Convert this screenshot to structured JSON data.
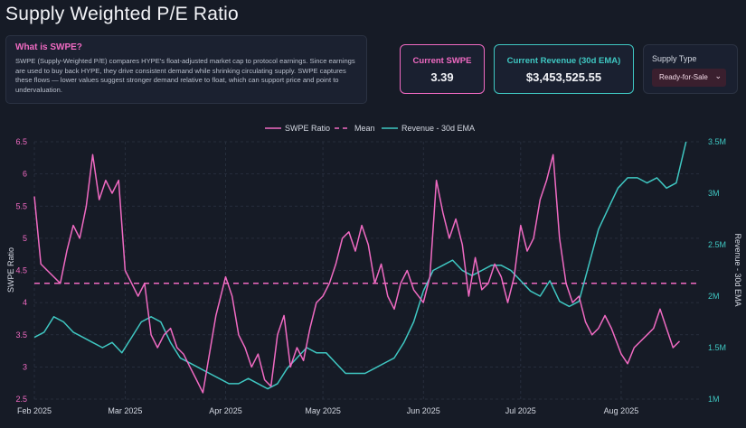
{
  "page": {
    "title": "Supply Weighted P/E Ratio"
  },
  "info": {
    "heading": "What is SWPE?",
    "body": "SWPE (Supply-Weighted P/E) compares HYPE's float-adjusted market cap to protocol earnings. Since earnings are used to buy back HYPE, they drive consistent demand while shrinking circulating supply. SWPE captures these flows — lower values suggest stronger demand relative to float, which can support price and point to undervaluation."
  },
  "cards": {
    "swpe_label": "Current SWPE",
    "swpe_value": "3.39",
    "revenue_label": "Current Revenue (30d EMA)",
    "revenue_value": "$3,453,525.55"
  },
  "supply": {
    "label": "Supply Type",
    "selected": "Ready-for-Sale"
  },
  "colors": {
    "swpe": "#f06ac2",
    "revenue": "#3fc7c2",
    "mean": "#f06ac2",
    "grid": "#2c3343"
  },
  "icons": {
    "select": "chevron-down-icon"
  },
  "chart_data": {
    "type": "line",
    "title": "",
    "xlabel": "",
    "ylabel": "SWPE Ratio",
    "y2label": "Revenue - 30d EMA",
    "ylim": [
      2.5,
      6.5
    ],
    "y2lim": [
      1000000,
      3500000
    ],
    "xlim": [
      "2025-02-01",
      "2025-08-25"
    ],
    "yticks": [
      "2.5",
      "3",
      "3.5",
      "4",
      "4.5",
      "5",
      "5.5",
      "6",
      "6.5"
    ],
    "y2ticks": [
      "1M",
      "1.5M",
      "2M",
      "2.5M",
      "3M",
      "3.5M"
    ],
    "xticks": [
      {
        "date": "2025-02-01",
        "label": "Feb 2025"
      },
      {
        "date": "2025-03-01",
        "label": "Mar 2025"
      },
      {
        "date": "2025-04-01",
        "label": "Apr 2025"
      },
      {
        "date": "2025-05-01",
        "label": "May 2025"
      },
      {
        "date": "2025-06-01",
        "label": "Jun 2025"
      },
      {
        "date": "2025-07-01",
        "label": "Jul 2025"
      },
      {
        "date": "2025-08-01",
        "label": "Aug 2025"
      }
    ],
    "grid": true,
    "legend_position": "top-center",
    "legend": [
      "SWPE Ratio",
      "Mean",
      "Revenue - 30d EMA"
    ],
    "mean": 4.3,
    "series": [
      {
        "name": "SWPE Ratio",
        "axis": "left",
        "x": [
          "2025-02-01",
          "2025-02-03",
          "2025-02-05",
          "2025-02-07",
          "2025-02-09",
          "2025-02-11",
          "2025-02-13",
          "2025-02-15",
          "2025-02-17",
          "2025-02-19",
          "2025-02-21",
          "2025-02-23",
          "2025-02-25",
          "2025-02-27",
          "2025-03-01",
          "2025-03-03",
          "2025-03-05",
          "2025-03-07",
          "2025-03-09",
          "2025-03-11",
          "2025-03-13",
          "2025-03-15",
          "2025-03-17",
          "2025-03-19",
          "2025-03-21",
          "2025-03-23",
          "2025-03-25",
          "2025-03-27",
          "2025-03-29",
          "2025-04-01",
          "2025-04-03",
          "2025-04-05",
          "2025-04-07",
          "2025-04-09",
          "2025-04-11",
          "2025-04-13",
          "2025-04-15",
          "2025-04-17",
          "2025-04-19",
          "2025-04-21",
          "2025-04-23",
          "2025-04-25",
          "2025-04-27",
          "2025-04-29",
          "2025-05-01",
          "2025-05-03",
          "2025-05-05",
          "2025-05-07",
          "2025-05-09",
          "2025-05-11",
          "2025-05-13",
          "2025-05-15",
          "2025-05-17",
          "2025-05-19",
          "2025-05-21",
          "2025-05-23",
          "2025-05-25",
          "2025-05-27",
          "2025-05-29",
          "2025-06-01",
          "2025-06-03",
          "2025-06-05",
          "2025-06-07",
          "2025-06-09",
          "2025-06-11",
          "2025-06-13",
          "2025-06-15",
          "2025-06-17",
          "2025-06-19",
          "2025-06-21",
          "2025-06-23",
          "2025-06-25",
          "2025-06-27",
          "2025-06-29",
          "2025-07-01",
          "2025-07-03",
          "2025-07-05",
          "2025-07-07",
          "2025-07-09",
          "2025-07-11",
          "2025-07-13",
          "2025-07-15",
          "2025-07-17",
          "2025-07-19",
          "2025-07-21",
          "2025-07-23",
          "2025-07-25",
          "2025-07-27",
          "2025-07-29",
          "2025-08-01",
          "2025-08-03",
          "2025-08-05",
          "2025-08-07",
          "2025-08-09",
          "2025-08-11",
          "2025-08-13",
          "2025-08-15",
          "2025-08-17",
          "2025-08-19"
        ],
        "values": [
          5.65,
          4.6,
          4.5,
          4.4,
          4.3,
          4.8,
          5.2,
          5.0,
          5.5,
          6.3,
          5.6,
          5.9,
          5.7,
          5.9,
          4.5,
          4.3,
          4.1,
          4.3,
          3.5,
          3.3,
          3.5,
          3.6,
          3.3,
          3.2,
          3.0,
          2.8,
          2.6,
          3.2,
          3.8,
          4.4,
          4.1,
          3.5,
          3.3,
          3.0,
          3.2,
          2.8,
          2.7,
          3.5,
          3.8,
          3.0,
          3.3,
          3.1,
          3.6,
          4.0,
          4.1,
          4.3,
          4.6,
          5.0,
          5.1,
          4.8,
          5.2,
          4.9,
          4.3,
          4.6,
          4.1,
          3.9,
          4.3,
          4.5,
          4.2,
          4.0,
          4.4,
          5.9,
          5.4,
          5.0,
          5.3,
          4.9,
          4.1,
          4.7,
          4.2,
          4.3,
          4.6,
          4.4,
          4.0,
          4.4,
          5.2,
          4.8,
          5.0,
          5.6,
          5.9,
          6.3,
          5.0,
          4.3,
          4.0,
          4.1,
          3.7,
          3.5,
          3.6,
          3.8,
          3.6,
          3.2,
          3.05,
          3.3,
          3.4,
          3.5,
          3.6,
          3.9,
          3.6,
          3.3,
          3.4
        ]
      },
      {
        "name": "Revenue - 30d EMA",
        "axis": "right",
        "x": [
          "2025-02-01",
          "2025-02-04",
          "2025-02-07",
          "2025-02-10",
          "2025-02-13",
          "2025-02-16",
          "2025-02-19",
          "2025-02-22",
          "2025-02-25",
          "2025-02-28",
          "2025-03-03",
          "2025-03-06",
          "2025-03-09",
          "2025-03-12",
          "2025-03-15",
          "2025-03-18",
          "2025-03-21",
          "2025-03-24",
          "2025-03-27",
          "2025-03-30",
          "2025-04-02",
          "2025-04-05",
          "2025-04-08",
          "2025-04-11",
          "2025-04-14",
          "2025-04-17",
          "2025-04-20",
          "2025-04-23",
          "2025-04-26",
          "2025-04-29",
          "2025-05-02",
          "2025-05-05",
          "2025-05-08",
          "2025-05-11",
          "2025-05-14",
          "2025-05-17",
          "2025-05-20",
          "2025-05-23",
          "2025-05-26",
          "2025-05-29",
          "2025-06-01",
          "2025-06-04",
          "2025-06-07",
          "2025-06-10",
          "2025-06-13",
          "2025-06-16",
          "2025-06-19",
          "2025-06-22",
          "2025-06-25",
          "2025-06-28",
          "2025-07-01",
          "2025-07-04",
          "2025-07-07",
          "2025-07-10",
          "2025-07-13",
          "2025-07-16",
          "2025-07-19",
          "2025-07-22",
          "2025-07-25",
          "2025-07-28",
          "2025-07-31",
          "2025-08-03",
          "2025-08-06",
          "2025-08-09",
          "2025-08-12",
          "2025-08-15",
          "2025-08-18",
          "2025-08-21"
        ],
        "values": [
          1600000,
          1650000,
          1800000,
          1750000,
          1650000,
          1600000,
          1550000,
          1500000,
          1550000,
          1450000,
          1600000,
          1750000,
          1800000,
          1750000,
          1550000,
          1400000,
          1350000,
          1300000,
          1250000,
          1200000,
          1150000,
          1150000,
          1200000,
          1150000,
          1100000,
          1150000,
          1300000,
          1400000,
          1500000,
          1450000,
          1450000,
          1350000,
          1250000,
          1250000,
          1250000,
          1300000,
          1350000,
          1400000,
          1550000,
          1750000,
          2050000,
          2250000,
          2300000,
          2350000,
          2250000,
          2200000,
          2250000,
          2300000,
          2300000,
          2250000,
          2150000,
          2050000,
          2000000,
          2150000,
          1950000,
          1900000,
          1950000,
          2300000,
          2650000,
          2850000,
          3050000,
          3150000,
          3150000,
          3100000,
          3150000,
          3050000,
          3100000,
          3500000
        ]
      }
    ]
  }
}
